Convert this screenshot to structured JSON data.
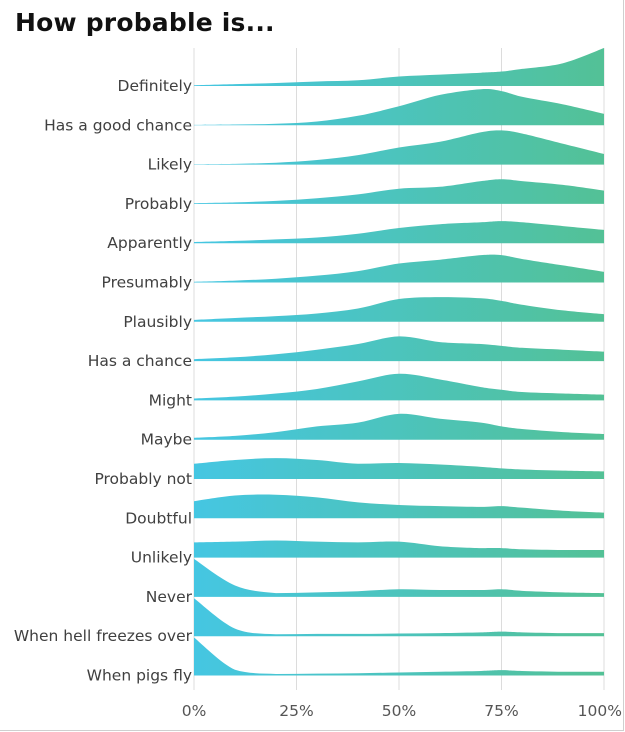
{
  "title": "How probable is...",
  "chart_data": {
    "type": "ridgeline",
    "title": "How probable is...",
    "xlabel": "",
    "ylabel": "",
    "xlim": [
      0,
      100
    ],
    "x_ticks": [
      0,
      25,
      50,
      75,
      100
    ],
    "x_tick_labels": [
      "0%",
      "25%",
      "50%",
      "75%",
      "100%"
    ],
    "grid": true,
    "color_start": "#45c6e2",
    "color_end": "#53c196",
    "x": [
      0,
      10,
      20,
      30,
      40,
      50,
      60,
      70,
      75,
      80,
      90,
      100
    ],
    "series": [
      {
        "name": "Definitely",
        "values": [
          0.02,
          0.05,
          0.08,
          0.12,
          0.15,
          0.25,
          0.3,
          0.35,
          0.38,
          0.45,
          0.6,
          1.0
        ]
      },
      {
        "name": "Has a good chance",
        "values": [
          0.01,
          0.02,
          0.04,
          0.1,
          0.25,
          0.5,
          0.8,
          0.95,
          0.9,
          0.75,
          0.55,
          0.3
        ]
      },
      {
        "name": "Likely",
        "values": [
          0.01,
          0.02,
          0.05,
          0.12,
          0.25,
          0.45,
          0.6,
          0.85,
          0.9,
          0.82,
          0.55,
          0.28
        ]
      },
      {
        "name": "Probably",
        "values": [
          0.02,
          0.04,
          0.08,
          0.15,
          0.25,
          0.4,
          0.45,
          0.6,
          0.65,
          0.6,
          0.5,
          0.35
        ]
      },
      {
        "name": "Apparently",
        "values": [
          0.03,
          0.06,
          0.1,
          0.15,
          0.25,
          0.4,
          0.5,
          0.55,
          0.58,
          0.55,
          0.45,
          0.35
        ]
      },
      {
        "name": "Presumably",
        "values": [
          0.02,
          0.05,
          0.1,
          0.18,
          0.3,
          0.5,
          0.6,
          0.72,
          0.72,
          0.62,
          0.45,
          0.28
        ]
      },
      {
        "name": "Plausibly",
        "values": [
          0.05,
          0.1,
          0.15,
          0.22,
          0.35,
          0.6,
          0.65,
          0.62,
          0.55,
          0.45,
          0.3,
          0.2
        ]
      },
      {
        "name": "Has a chance",
        "values": [
          0.05,
          0.1,
          0.18,
          0.3,
          0.45,
          0.65,
          0.5,
          0.45,
          0.4,
          0.35,
          0.3,
          0.25
        ]
      },
      {
        "name": "Might",
        "values": [
          0.05,
          0.1,
          0.18,
          0.3,
          0.5,
          0.7,
          0.55,
          0.35,
          0.28,
          0.22,
          0.18,
          0.15
        ]
      },
      {
        "name": "Maybe",
        "values": [
          0.05,
          0.1,
          0.2,
          0.35,
          0.45,
          0.68,
          0.55,
          0.45,
          0.35,
          0.28,
          0.2,
          0.15
        ]
      },
      {
        "name": "Probably not",
        "values": [
          0.4,
          0.5,
          0.55,
          0.5,
          0.4,
          0.42,
          0.38,
          0.32,
          0.28,
          0.25,
          0.22,
          0.2
        ]
      },
      {
        "name": "Doubtful",
        "values": [
          0.45,
          0.6,
          0.62,
          0.55,
          0.42,
          0.35,
          0.32,
          0.3,
          0.32,
          0.28,
          0.2,
          0.15
        ]
      },
      {
        "name": "Unlikely",
        "values": [
          0.4,
          0.42,
          0.45,
          0.42,
          0.4,
          0.42,
          0.3,
          0.25,
          0.25,
          0.22,
          0.2,
          0.2
        ]
      },
      {
        "name": "Never",
        "values": [
          1.0,
          0.3,
          0.1,
          0.12,
          0.15,
          0.2,
          0.18,
          0.18,
          0.2,
          0.16,
          0.12,
          0.1
        ]
      },
      {
        "name": "When hell freezes over",
        "values": [
          1.0,
          0.2,
          0.05,
          0.06,
          0.06,
          0.07,
          0.08,
          0.1,
          0.12,
          0.1,
          0.08,
          0.08
        ]
      },
      {
        "name": "When pigs fly",
        "values": [
          1.0,
          0.15,
          0.04,
          0.05,
          0.06,
          0.08,
          0.1,
          0.12,
          0.14,
          0.12,
          0.1,
          0.1
        ]
      }
    ]
  }
}
